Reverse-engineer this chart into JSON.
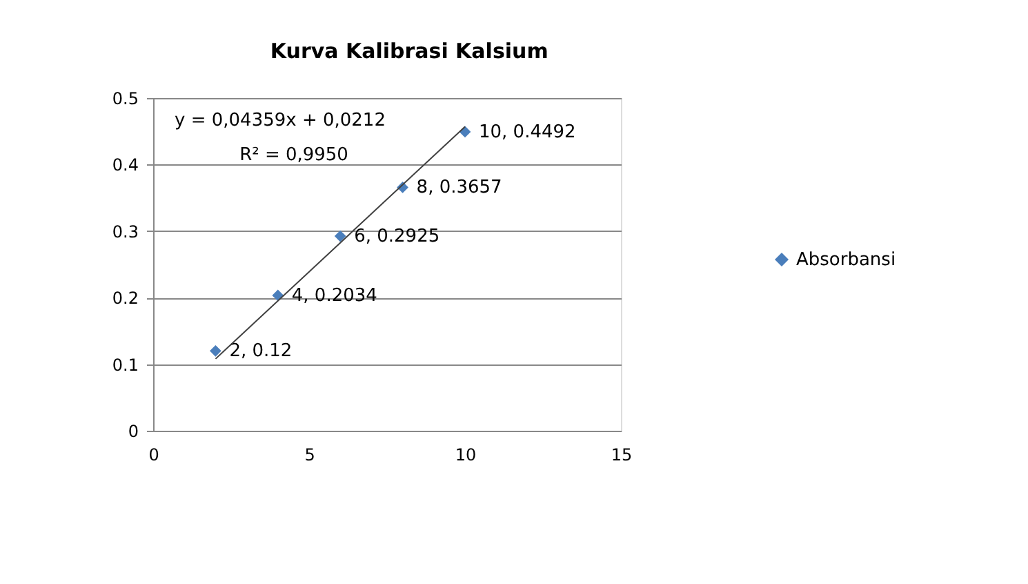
{
  "chart_data": {
    "type": "scatter",
    "title": "Kurva Kalibrasi Kalsium",
    "x": [
      2,
      4,
      6,
      8,
      10
    ],
    "series": [
      {
        "name": "Absorbansi",
        "color": "#4a7ebb",
        "values": [
          0.12,
          0.2034,
          0.2925,
          0.3657,
          0.4492
        ],
        "value_labels": [
          "2, 0.12",
          "4, 0.2034",
          "6, 0.2925",
          "8, 0.3657",
          "10, 0.4492"
        ]
      },
      {
        "type": "line",
        "color": "#404040",
        "x": [
          2,
          10
        ],
        "values": [
          0.108,
          0.457
        ],
        "marker": "none"
      }
    ],
    "annotations": [
      "y = 0,04359x + 0,0212",
      "R² = 0,9950"
    ],
    "xlim": [
      0,
      15
    ],
    "xticks": [
      0,
      5,
      10,
      15
    ],
    "ylim": [
      0,
      0.5
    ],
    "yticks": [
      0,
      0.1,
      0.2,
      0.3,
      0.4,
      0.5
    ],
    "grid": "y",
    "legend": "right",
    "marker": "diamond"
  }
}
